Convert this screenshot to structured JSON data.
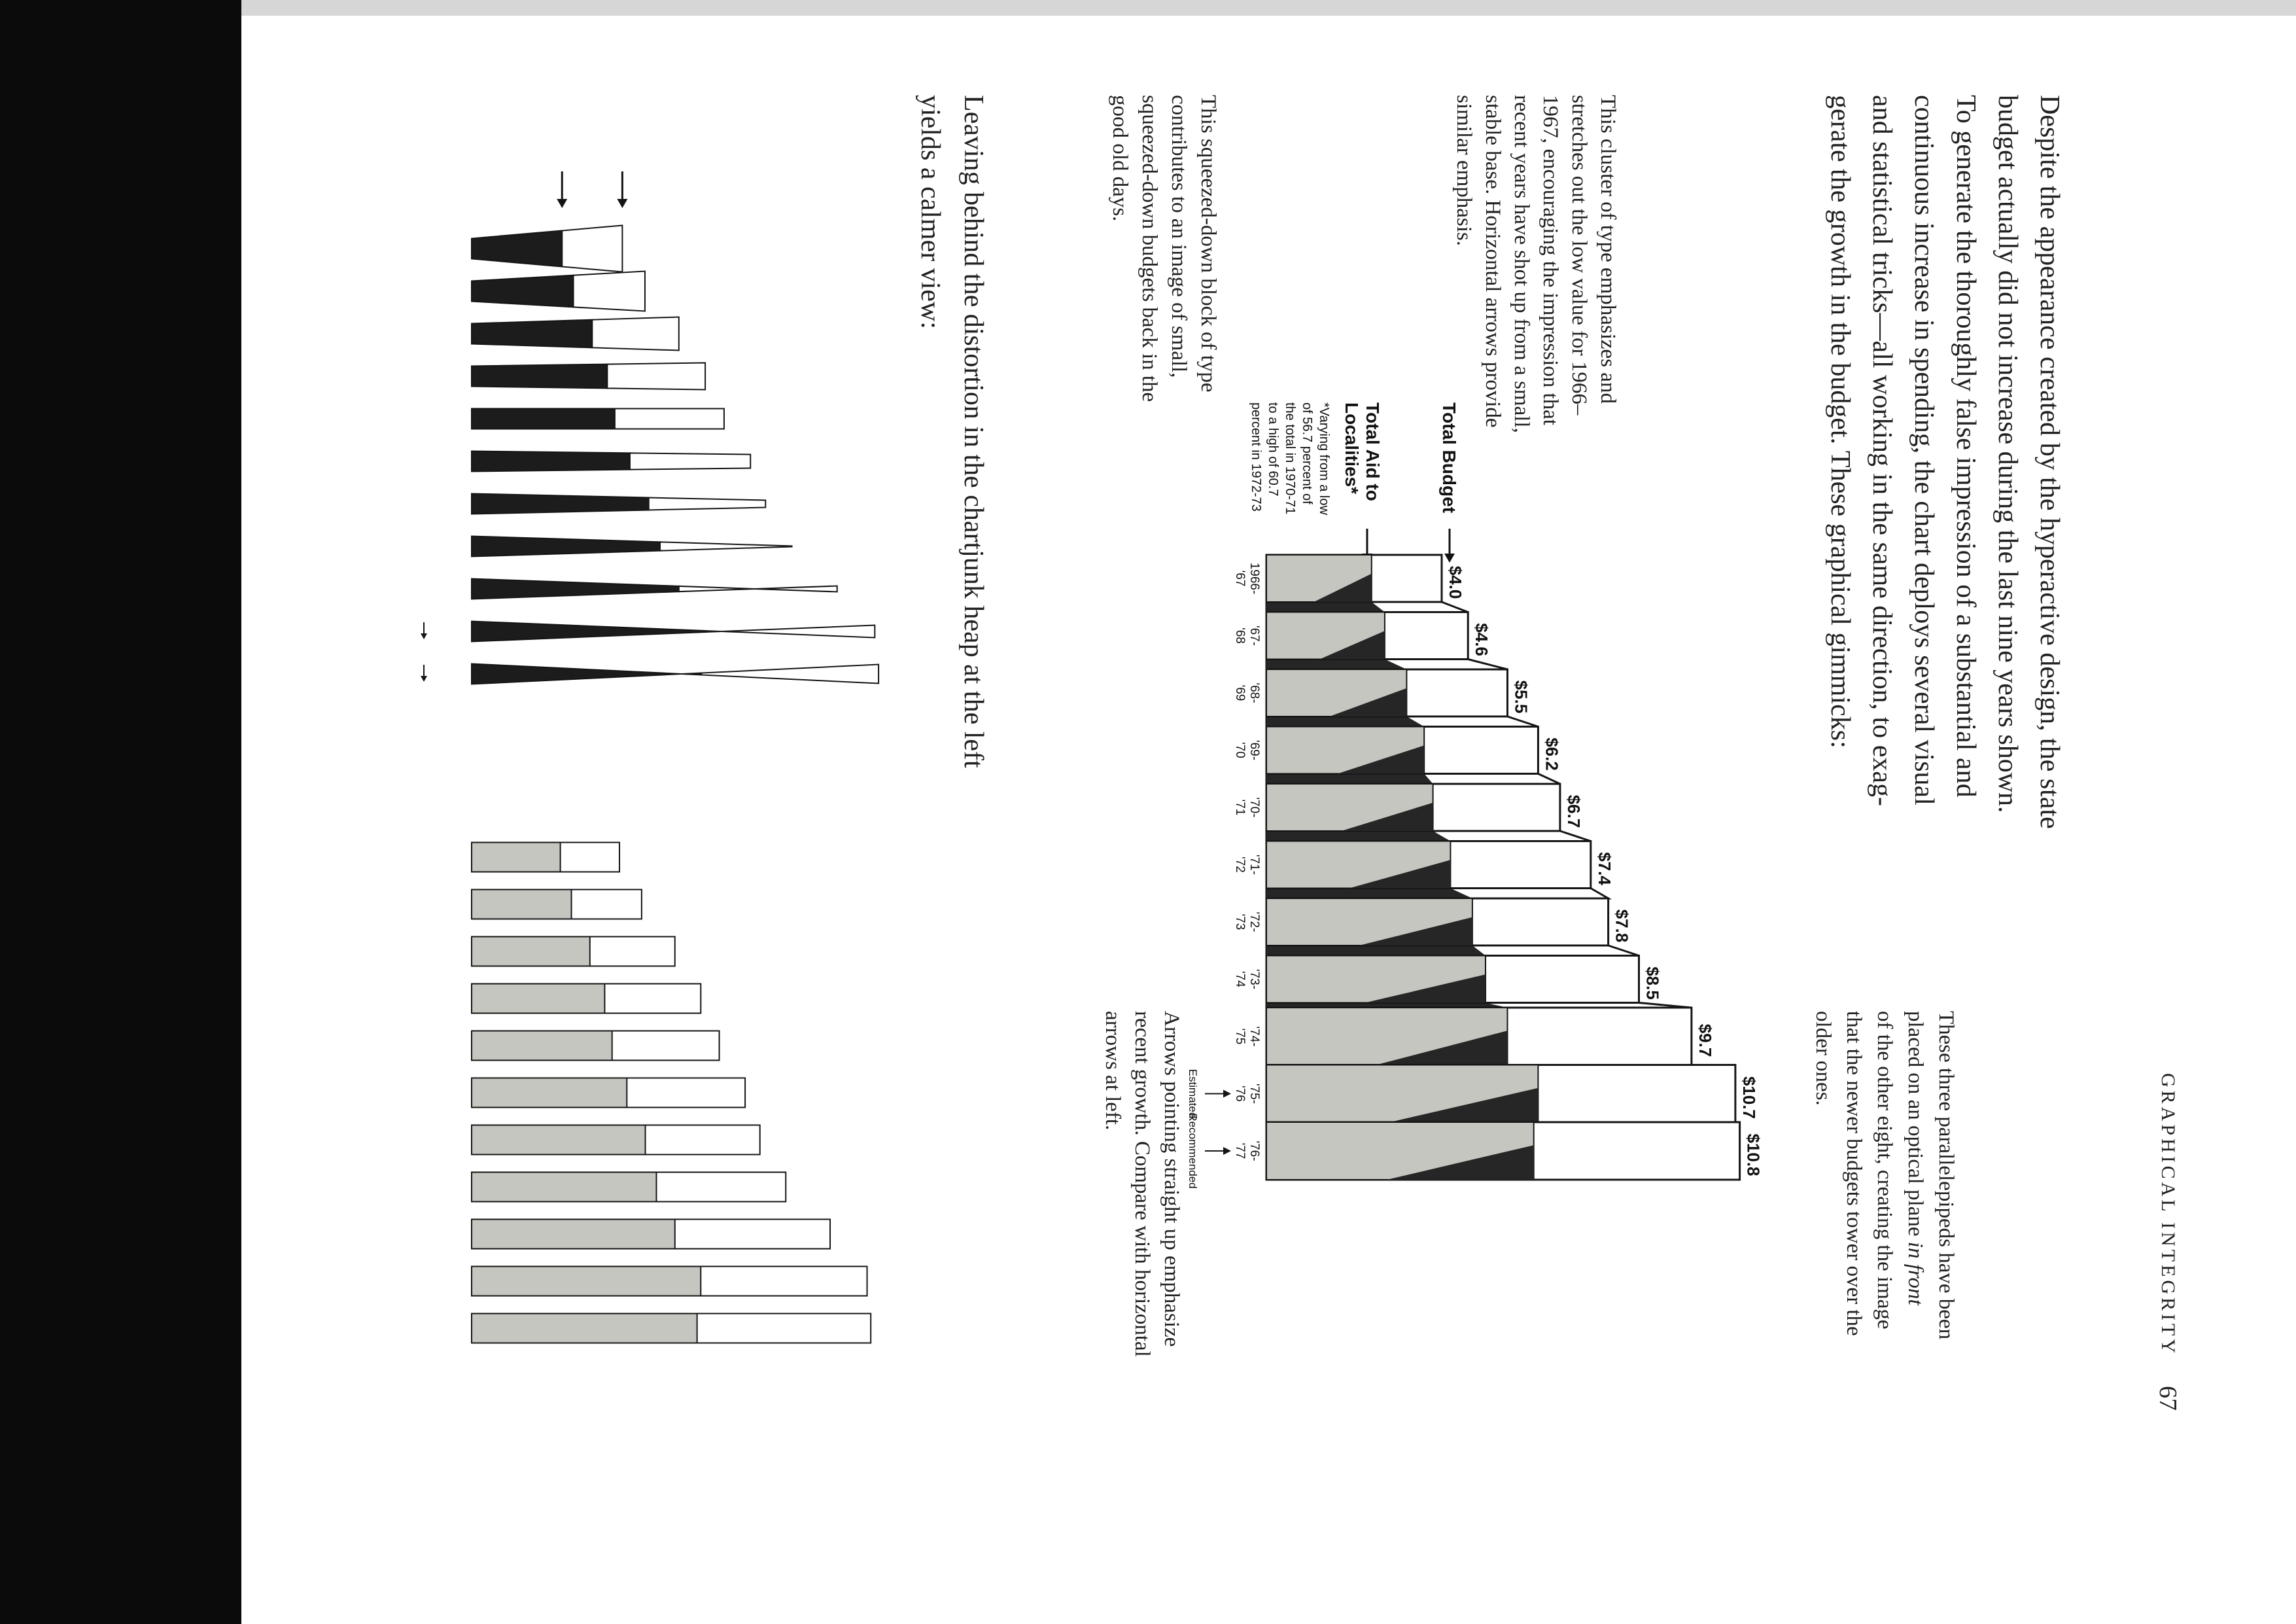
{
  "header": {
    "running_head": "GRAPHICAL INTEGRITY",
    "page_number": "67"
  },
  "body": {
    "lines": [
      "Despite the appearance created by the hyperactive design, the state",
      "budget actually did not increase during the last nine years shown.",
      "To generate the thoroughly false impression of a substantial and",
      "continuous increase in spending, the chart deploys several visual",
      "and statistical tricks—all working in the same direction, to exag-",
      "gerate the growth in the budget. These graphical gimmicks:"
    ]
  },
  "side_note": {
    "lines": [
      "These three parallelepipeds have been",
      {
        "text": "placed on an optical plane",
        "italic": "in front"
      },
      "of the other eight, creating the image",
      "that the newer budgets tower over the",
      "older ones."
    ]
  },
  "notes": {
    "cluster": [
      "This cluster of type emphasizes and",
      "stretches out the low value for 1966–",
      "1967, encouraging the impression that",
      "recent years have shot up from a small,",
      "stable base. Horizontal arrows provide",
      "similar emphasis."
    ],
    "squeezed": [
      "This squeezed-down block of type",
      "contributes to an image of small,",
      "squeezed-down budgets back in the",
      "good old days."
    ],
    "arrows": [
      "Arrows pointing straight up emphasize",
      "recent growth. Compare with horizontal",
      "arrows at left."
    ]
  },
  "closing": {
    "lines": [
      "Leaving behind the distortion in the chartjunk heap at the left",
      "yields a calmer view:"
    ]
  },
  "chart_data": {
    "type": "bar",
    "categories": [
      [
        "1966-",
        "'67"
      ],
      [
        "'67-",
        "'68"
      ],
      [
        "'68-",
        "'69"
      ],
      [
        "'69-",
        "'70"
      ],
      [
        "'70-",
        "'71"
      ],
      [
        "'71-",
        "'72"
      ],
      [
        "'72-",
        "'73"
      ],
      [
        "'73-",
        "'74"
      ],
      [
        "'74-",
        "'75"
      ],
      [
        "'75-",
        "'76"
      ],
      [
        "'76-",
        "'77"
      ]
    ],
    "series": [
      {
        "name": "Total Budget",
        "color": "#ffffff",
        "values": [
          4.0,
          4.6,
          5.5,
          6.2,
          6.7,
          7.4,
          7.8,
          8.5,
          9.7,
          10.7,
          10.8
        ],
        "value_labels": [
          "$4.0",
          "$4.6",
          "$5.5",
          "$6.2",
          "$6.7",
          "$7.4",
          "$7.8",
          "$8.5",
          "$9.7",
          "$10.7",
          "$10.8"
        ]
      },
      {
        "name": "Total Aid to Localities*",
        "color": "#c6c6c0",
        "values": [
          2.4,
          2.7,
          3.2,
          3.6,
          3.8,
          4.2,
          4.7,
          5.0,
          5.5,
          6.2,
          6.1
        ]
      }
    ],
    "footnote": [
      "*Varying from a low",
      "of 56.7 percent of",
      "the total in 1970-71",
      "to a high of 60.7",
      "percent in 1972-73"
    ],
    "notes": [
      "Estimated",
      "Recommended"
    ]
  }
}
